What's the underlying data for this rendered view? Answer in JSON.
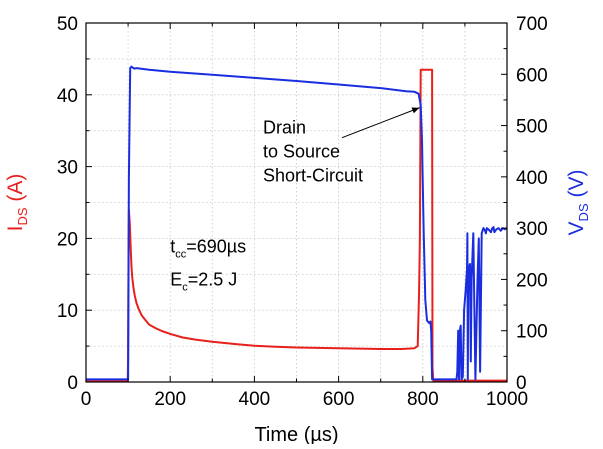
{
  "chart_data": {
    "type": "line",
    "xlabel": "Time (µs)",
    "xlim": [
      0,
      1000
    ],
    "x_ticks": [
      "0",
      "200",
      "400",
      "600",
      "800",
      "1000"
    ],
    "y_left": {
      "label_main": "I",
      "label_sub": "DS",
      "label_unit": " (A)",
      "lim": [
        0,
        50
      ],
      "ticks": [
        "0",
        "10",
        "20",
        "30",
        "40",
        "50"
      ],
      "color": "#e8201c"
    },
    "y_right": {
      "label_main": "V",
      "label_sub": "DS",
      "label_unit": " (V)",
      "lim": [
        0,
        700
      ],
      "ticks": [
        "0",
        "100",
        "200",
        "300",
        "400",
        "500",
        "600",
        "700"
      ],
      "color": "#1a2ee0"
    },
    "grid": true,
    "series": [
      {
        "axis": "left",
        "color": "#e8201c",
        "x": [
          0,
          99,
          100,
          101,
          102,
          104,
          106,
          108,
          110,
          113,
          116,
          120,
          125,
          132,
          140,
          150,
          165,
          180,
          200,
          230,
          260,
          300,
          350,
          400,
          450,
          500,
          550,
          600,
          650,
          700,
          750,
          780,
          788,
          791,
          793,
          795,
          822,
          823,
          825,
          1000
        ],
        "y": [
          0.1,
          0.1,
          3,
          17,
          24,
          22,
          19,
          16,
          14.5,
          13,
          12,
          11,
          10.2,
          9.3,
          8.7,
          8,
          7.5,
          7.1,
          6.7,
          6.2,
          5.9,
          5.6,
          5.3,
          5.05,
          4.9,
          4.8,
          4.75,
          4.7,
          4.65,
          4.6,
          4.6,
          4.7,
          5,
          12,
          20,
          43.5,
          43.5,
          2,
          0.2,
          0.2
        ]
      },
      {
        "axis": "right",
        "color": "#1a2ee0",
        "x": [
          0,
          100,
          102,
          105,
          108,
          111,
          115,
          120,
          150,
          200,
          300,
          400,
          500,
          600,
          700,
          760,
          780,
          790,
          795,
          798,
          802,
          806,
          810,
          815,
          818,
          820,
          822,
          880,
          882,
          884,
          886,
          888,
          890,
          892,
          895,
          898,
          902,
          905,
          906,
          907,
          908,
          912,
          914,
          916,
          920,
          925,
          930,
          933,
          936,
          940,
          944,
          948,
          950,
          952,
          955,
          958,
          962,
          965,
          968,
          970,
          975,
          980,
          985,
          990,
          995,
          1000
        ],
        "y": [
          5,
          5,
          400,
          612,
          615,
          613,
          611,
          612,
          609,
          605,
          599,
          593,
          587,
          580,
          573,
          567,
          566,
          562,
          540,
          470,
          300,
          160,
          120,
          115,
          118,
          100,
          5,
          5,
          20,
          100,
          5,
          100,
          110,
          5,
          10,
          140,
          180,
          220,
          290,
          5,
          220,
          230,
          40,
          200,
          290,
          5,
          200,
          280,
          20,
          290,
          300,
          295,
          290,
          300,
          298,
          296,
          292,
          300,
          302,
          292,
          298,
          300,
          295,
          300,
          298,
          300
        ]
      }
    ],
    "annotations": [
      {
        "lines": [
          "Drain",
          "to Source",
          "Short-Circuit"
        ],
        "arrow_from": [
          835,
          38.2
        ],
        "arrow_to": [
          420,
          31.8
        ]
      },
      {
        "parts": [
          "t",
          "cc",
          "=690µs"
        ],
        "x": 238,
        "y": 18.2
      },
      {
        "parts": [
          "E",
          "c",
          "=2.5 J"
        ],
        "x": 238,
        "y": 13.6
      }
    ]
  }
}
